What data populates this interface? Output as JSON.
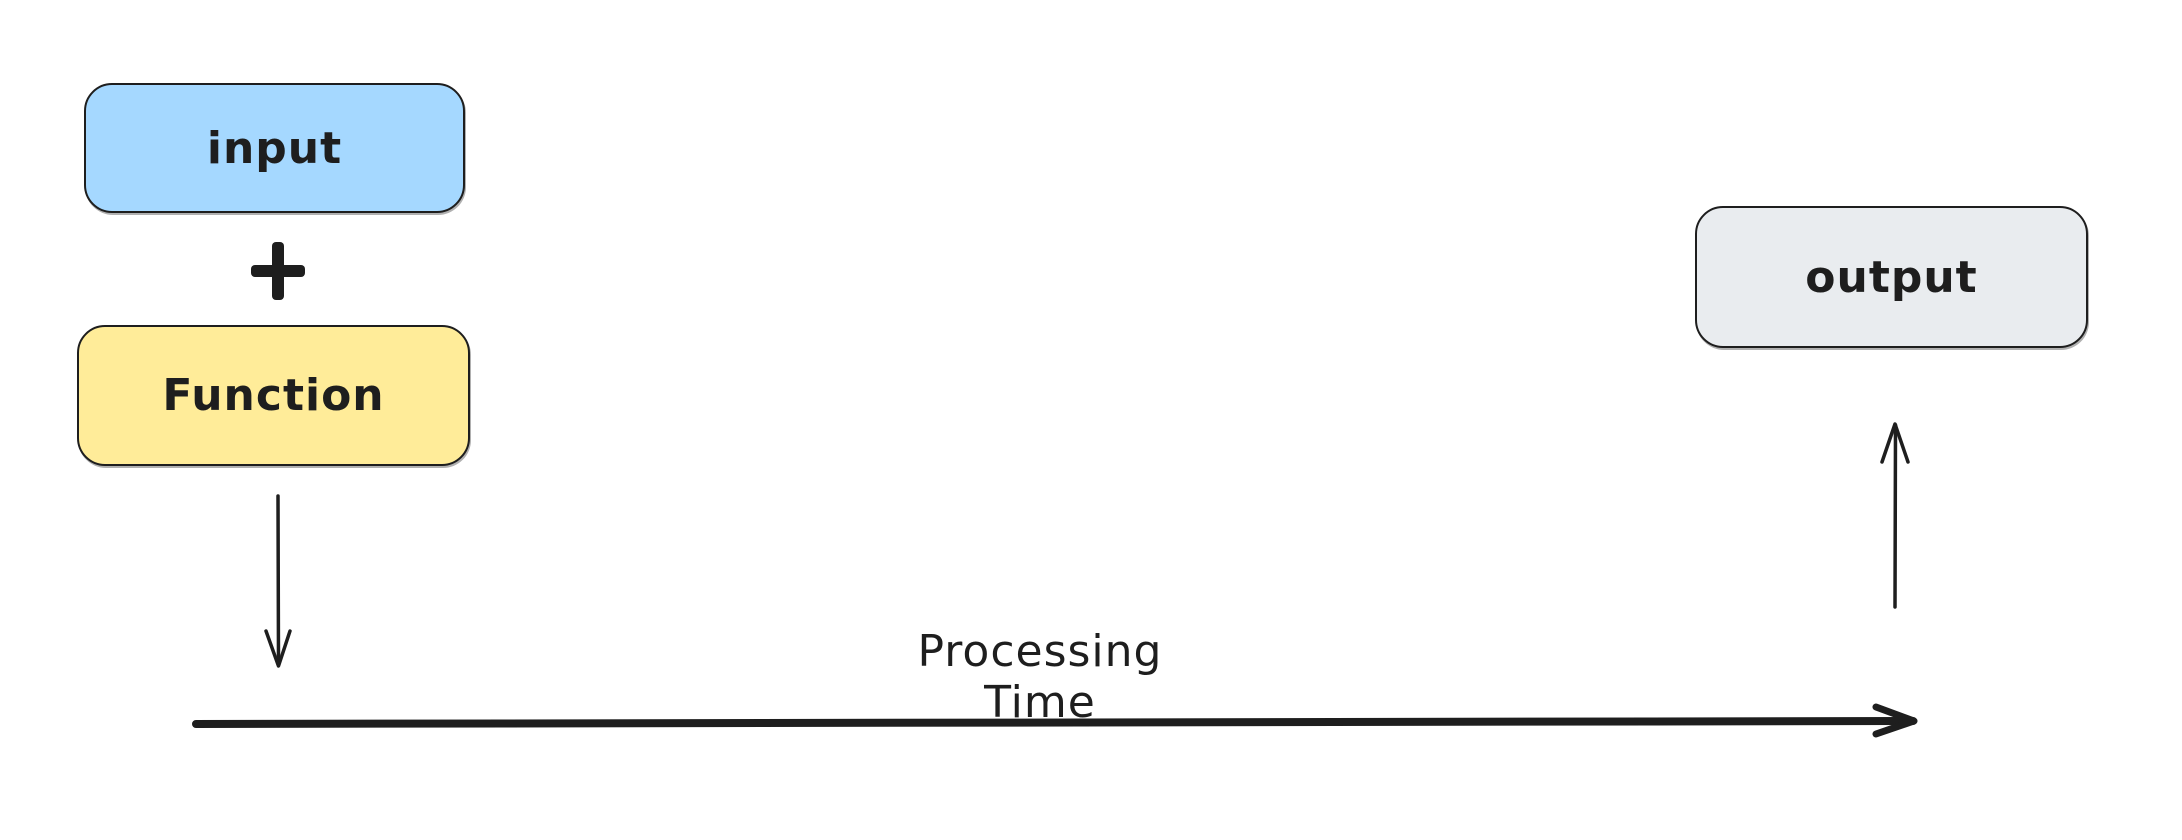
{
  "diagram": {
    "nodes": {
      "input": {
        "label": "input",
        "fill": "#a5d8ff"
      },
      "function": {
        "label": "Function",
        "fill": "#ffec99"
      },
      "output": {
        "label": "output",
        "fill": "#e9ecef"
      }
    },
    "operator_icon": "plus-icon",
    "timeline_label": "Processing Time",
    "stroke_color": "#1e1e1e"
  }
}
